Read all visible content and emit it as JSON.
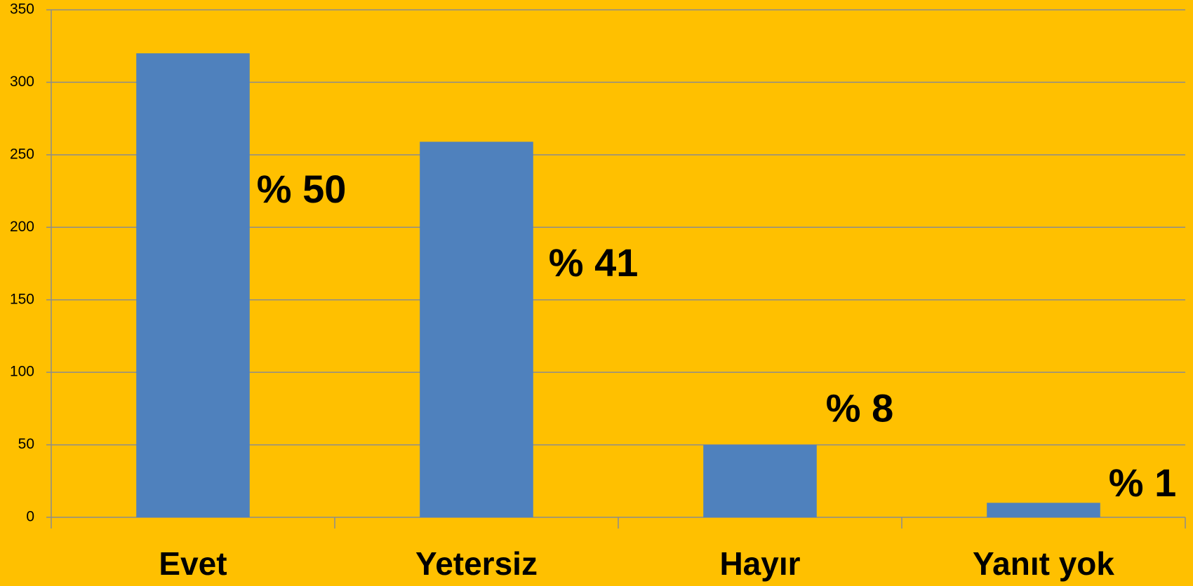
{
  "chart_data": {
    "type": "bar",
    "categories": [
      "Evet",
      "Yetersiz",
      "Hayır",
      "Yanıt yok"
    ],
    "values": [
      320,
      259,
      50,
      10
    ],
    "annotations": [
      "% 50",
      "% 41",
      "% 8",
      "% 1"
    ],
    "color": "#4f81bd",
    "ylim": [
      0,
      350
    ],
    "yticks": [
      0,
      50,
      100,
      150,
      200,
      250,
      300,
      350
    ],
    "grid": true
  }
}
